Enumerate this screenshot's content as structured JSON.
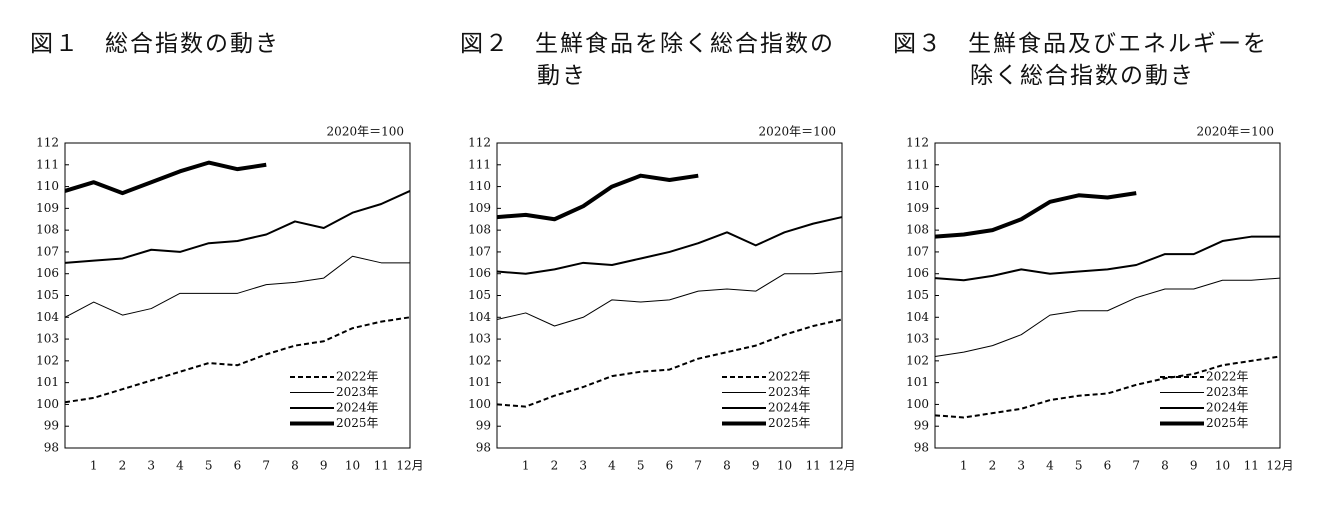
{
  "chart_data": [
    {
      "type": "line",
      "title": "図１　総合指数の動き",
      "annotation": "2020年＝100",
      "categories": [
        null,
        "1",
        "2",
        "3",
        "4",
        "5",
        "6",
        "7",
        "8",
        "9",
        "10",
        "11",
        "12月"
      ],
      "ylim": [
        98,
        112
      ],
      "yticks": [
        98,
        99,
        100,
        101,
        102,
        103,
        104,
        105,
        106,
        107,
        108,
        109,
        110,
        111,
        112
      ],
      "legend": "lower right",
      "series": [
        {
          "name": "2022年",
          "color": "#000000",
          "style": "dashed",
          "width": 2,
          "values": [
            100.1,
            100.3,
            100.7,
            101.1,
            101.5,
            101.9,
            101.8,
            102.3,
            102.7,
            102.9,
            103.5,
            103.8,
            104.0
          ]
        },
        {
          "name": "2023年",
          "color": "#000000",
          "style": "solid",
          "width": 1,
          "values": [
            104.0,
            104.7,
            104.1,
            104.4,
            105.1,
            105.1,
            105.1,
            105.5,
            105.6,
            105.8,
            106.8,
            106.5,
            106.5
          ]
        },
        {
          "name": "2024年",
          "color": "#000000",
          "style": "solid",
          "width": 2,
          "values": [
            106.5,
            106.6,
            106.7,
            107.1,
            107.0,
            107.4,
            107.5,
            107.8,
            108.4,
            108.1,
            108.8,
            109.2,
            109.8
          ]
        },
        {
          "name": "2025年",
          "color": "#000000",
          "style": "solid",
          "width": 4,
          "values": [
            109.8,
            110.2,
            109.7,
            110.2,
            110.7,
            111.1,
            110.8,
            111.0,
            null,
            null,
            null,
            null,
            null
          ]
        }
      ]
    },
    {
      "type": "line",
      "title": "図２　生鮮食品を除く総合指数の動き",
      "annotation": "2020年＝100",
      "categories": [
        null,
        "1",
        "2",
        "3",
        "4",
        "5",
        "6",
        "7",
        "8",
        "9",
        "10",
        "11",
        "12月"
      ],
      "ylim": [
        98,
        112
      ],
      "yticks": [
        98,
        99,
        100,
        101,
        102,
        103,
        104,
        105,
        106,
        107,
        108,
        109,
        110,
        111,
        112
      ],
      "legend": "lower right",
      "series": [
        {
          "name": "2022年",
          "color": "#000000",
          "style": "dashed",
          "width": 2,
          "values": [
            100.0,
            99.9,
            100.4,
            100.8,
            101.3,
            101.5,
            101.6,
            102.1,
            102.4,
            102.7,
            103.2,
            103.6,
            103.9
          ]
        },
        {
          "name": "2023年",
          "color": "#000000",
          "style": "solid",
          "width": 1,
          "values": [
            103.9,
            104.2,
            103.6,
            104.0,
            104.8,
            104.7,
            104.8,
            105.2,
            105.3,
            105.2,
            106.0,
            106.0,
            106.1
          ]
        },
        {
          "name": "2024年",
          "color": "#000000",
          "style": "solid",
          "width": 2,
          "values": [
            106.1,
            106.0,
            106.2,
            106.5,
            106.4,
            106.7,
            107.0,
            107.4,
            107.9,
            107.3,
            107.9,
            108.3,
            108.6
          ]
        },
        {
          "name": "2025年",
          "color": "#000000",
          "style": "solid",
          "width": 4,
          "values": [
            108.6,
            108.7,
            108.5,
            109.1,
            110.0,
            110.5,
            110.3,
            110.5,
            null,
            null,
            null,
            null,
            null
          ]
        }
      ]
    },
    {
      "type": "line",
      "title": "図３　生鮮食品及びエネルギーを除く総合指数の動き",
      "annotation": "2020年＝100",
      "categories": [
        null,
        "1",
        "2",
        "3",
        "4",
        "5",
        "6",
        "7",
        "8",
        "9",
        "10",
        "11",
        "12月"
      ],
      "ylim": [
        98,
        112
      ],
      "yticks": [
        98,
        99,
        100,
        101,
        102,
        103,
        104,
        105,
        106,
        107,
        108,
        109,
        110,
        111,
        112
      ],
      "legend": "lower right",
      "series": [
        {
          "name": "2022年",
          "color": "#000000",
          "style": "dashed",
          "width": 2,
          "values": [
            99.5,
            99.4,
            99.6,
            99.8,
            100.2,
            100.4,
            100.5,
            100.9,
            101.2,
            101.4,
            101.8,
            102.0,
            102.2
          ]
        },
        {
          "name": "2023年",
          "color": "#000000",
          "style": "solid",
          "width": 1,
          "values": [
            102.2,
            102.4,
            102.7,
            103.2,
            104.1,
            104.3,
            104.3,
            104.9,
            105.3,
            105.3,
            105.7,
            105.7,
            105.8
          ]
        },
        {
          "name": "2024年",
          "color": "#000000",
          "style": "solid",
          "width": 2,
          "values": [
            105.8,
            105.7,
            105.9,
            106.2,
            106.0,
            106.1,
            106.2,
            106.4,
            106.9,
            106.9,
            107.5,
            107.7,
            107.7
          ]
        },
        {
          "name": "2025年",
          "color": "#000000",
          "style": "solid",
          "width": 4,
          "values": [
            107.7,
            107.8,
            108.0,
            108.5,
            109.3,
            109.6,
            109.5,
            109.7,
            null,
            null,
            null,
            null,
            null
          ]
        }
      ]
    }
  ]
}
